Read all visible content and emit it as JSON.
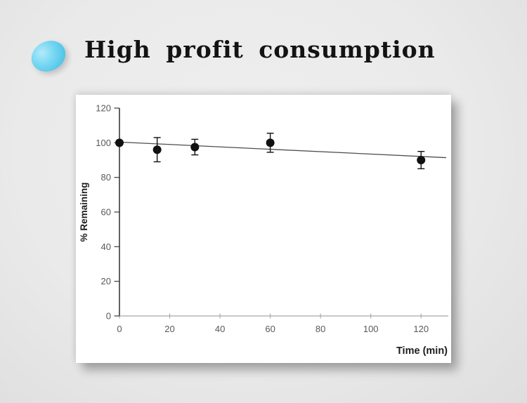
{
  "header": {
    "title": "High profit consumption",
    "pill_icon_color": "#58c8e9"
  },
  "panel": {
    "background": "#ffffff"
  },
  "chart_data": {
    "type": "scatter",
    "title": "",
    "xlabel": "Time (min)",
    "ylabel": "% Remaining",
    "xlim": [
      0,
      130
    ],
    "ylim": [
      0,
      120
    ],
    "xticks": [
      0,
      20,
      40,
      60,
      80,
      100,
      120
    ],
    "yticks": [
      0,
      20,
      40,
      60,
      80,
      100,
      120
    ],
    "grid": false,
    "legend": "none",
    "series": [
      {
        "name": "percent-remaining",
        "marker": "filled-circle",
        "marker_color": "#111111",
        "error_bar_color": "#111111",
        "points": [
          {
            "x": 0,
            "y": 100,
            "yerr": 0
          },
          {
            "x": 15,
            "y": 96,
            "yerr": 7
          },
          {
            "x": 30,
            "y": 97.5,
            "yerr": 4.5
          },
          {
            "x": 60,
            "y": 100,
            "yerr": 5.5
          },
          {
            "x": 120,
            "y": 90,
            "yerr": 5
          }
        ]
      }
    ],
    "trendline": {
      "x1": 0,
      "y1": 100.4,
      "x2": 130,
      "y2": 91.4,
      "color": "#4d4d4d"
    },
    "colors": {
      "y_axis": "#3a3a3a",
      "x_axis": "#a6a6a6",
      "tick_label": "#595959",
      "axis_title": "#1c1c1c"
    }
  }
}
